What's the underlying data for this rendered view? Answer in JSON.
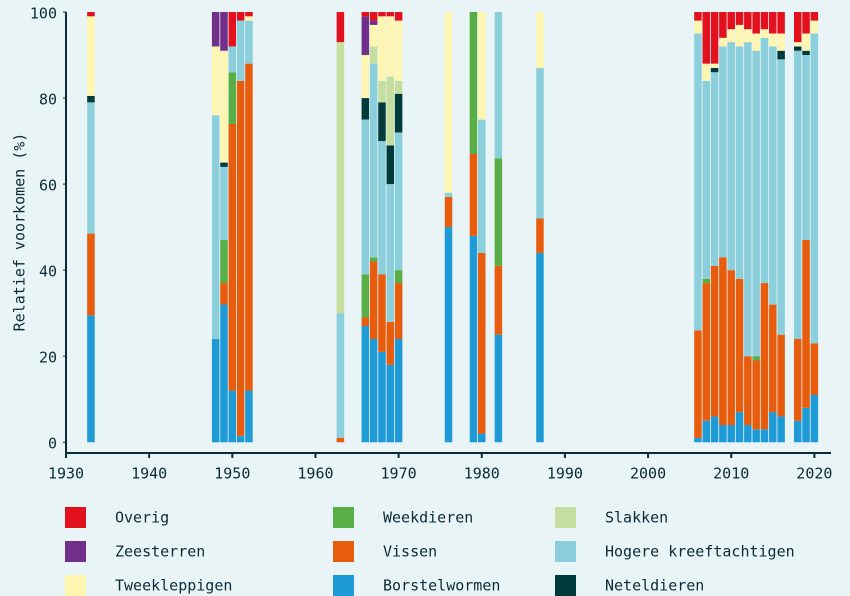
{
  "chart_data": {
    "type": "stacked_bar",
    "y_label": "Relatief voorkomen (%)",
    "x": [
      1933,
      1948,
      1949,
      1950,
      1951,
      1952,
      1963,
      1966,
      1967,
      1968,
      1969,
      1970,
      1976,
      1979,
      1980,
      1982,
      1987,
      2006,
      2007,
      2008,
      2009,
      2010,
      2011,
      2012,
      2013,
      2014,
      2015,
      2016,
      2018,
      2019,
      2020
    ],
    "xlim": [
      1930,
      2022
    ],
    "xticks": [
      1930,
      1940,
      1950,
      1960,
      1970,
      1980,
      1990,
      2000,
      2010,
      2020
    ],
    "ylim": [
      -2.5,
      100
    ],
    "yticks": [
      0,
      20,
      40,
      60,
      80,
      100
    ],
    "series": [
      {
        "name": "Borstelwormen",
        "color": "#1e9ad6",
        "values": [
          29.5,
          24,
          32,
          12,
          1.5,
          12,
          0,
          27,
          24,
          21,
          18,
          24,
          50,
          48,
          2,
          25,
          44,
          1,
          5,
          6,
          4,
          4,
          7,
          4,
          3,
          3,
          7,
          6,
          5,
          8,
          11
        ]
      },
      {
        "name": "Vissen",
        "color": "#e85c0d",
        "values": [
          19,
          0,
          5,
          62,
          82.5,
          76,
          1,
          2,
          18,
          18,
          10,
          13,
          7,
          19,
          42,
          16,
          8,
          25,
          32,
          35,
          39,
          36,
          31,
          16,
          16,
          34,
          25,
          19,
          19,
          39,
          12
        ]
      },
      {
        "name": "Weekdieren",
        "color": "#5aae46",
        "values": [
          0,
          0,
          10,
          12,
          0,
          0,
          0,
          10,
          1,
          0,
          0,
          3,
          0,
          33,
          0,
          25,
          0,
          0,
          1,
          0,
          0,
          0,
          0,
          0,
          1,
          0,
          0,
          0,
          0,
          0,
          0
        ]
      },
      {
        "name": "Hogere kreeftachtigen",
        "color": "#8ccfdc",
        "values": [
          30.5,
          52,
          17,
          6,
          14,
          10,
          29,
          36,
          45,
          31,
          32,
          32,
          1,
          0,
          31,
          34,
          35,
          69,
          46,
          45,
          49,
          53,
          54,
          73,
          71,
          57,
          60,
          64,
          67,
          43,
          72
        ]
      },
      {
        "name": "Neteldieren",
        "color": "#003a3a",
        "values": [
          1.5,
          0,
          1,
          0,
          0,
          0,
          0,
          5,
          0,
          9,
          9,
          9,
          0,
          0,
          0,
          0,
          0,
          0,
          0,
          1,
          0,
          0,
          0,
          0,
          0,
          0,
          0,
          2,
          1,
          1,
          0
        ]
      },
      {
        "name": "Slakken",
        "color": "#c5dea0",
        "values": [
          0,
          0,
          0,
          0,
          0,
          0,
          63,
          0,
          4,
          5,
          16,
          3,
          0,
          0,
          0,
          0,
          0,
          0,
          0,
          0,
          0,
          0,
          0,
          0,
          0,
          0,
          0,
          0,
          0,
          0,
          0
        ]
      },
      {
        "name": "Tweekleppigen",
        "color": "#fdf5b0",
        "values": [
          18.5,
          16,
          26,
          0,
          0,
          1,
          0,
          10,
          5,
          15,
          14,
          14,
          42,
          0,
          25,
          0,
          13,
          3,
          4,
          1,
          2,
          3,
          5,
          3,
          4,
          2,
          3,
          4,
          1,
          4,
          3
        ]
      },
      {
        "name": "Zeesterren",
        "color": "#70308a",
        "values": [
          0,
          8,
          9,
          0,
          0,
          0,
          0,
          9,
          1,
          0,
          0,
          0,
          0,
          0,
          0,
          0,
          0,
          0,
          0,
          0,
          0,
          0,
          0,
          0,
          0,
          0,
          0,
          0,
          0,
          0,
          0
        ]
      },
      {
        "name": "Overig",
        "color": "#e3101e",
        "values": [
          1,
          0,
          0,
          8,
          2,
          1,
          7,
          1,
          2,
          1,
          1,
          2,
          0,
          0,
          0,
          0,
          0,
          2,
          12,
          12,
          6,
          4,
          3,
          4,
          5,
          4,
          5,
          5,
          7,
          5,
          2
        ]
      }
    ]
  }
}
